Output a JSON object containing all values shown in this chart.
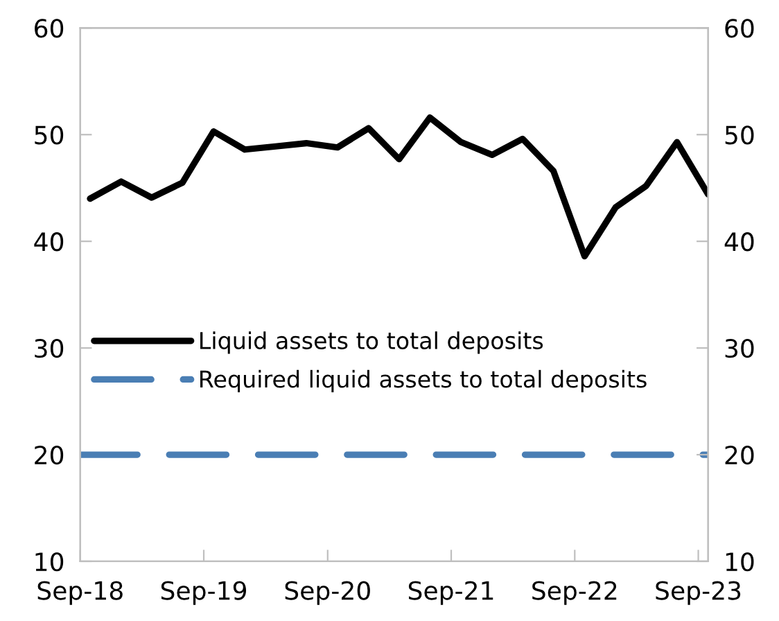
{
  "chart_data": {
    "type": "line",
    "x": [
      "2018-09-30",
      "2018-12-31",
      "2019-03-31",
      "2019-06-30",
      "2019-09-30",
      "2019-12-31",
      "2020-03-31",
      "2020-06-30",
      "2020-09-30",
      "2020-12-31",
      "2021-03-31",
      "2021-06-30",
      "2021-09-30",
      "2021-12-31",
      "2022-03-31",
      "2022-06-30",
      "2022-09-30",
      "2022-12-31",
      "2023-03-31",
      "2023-06-30",
      "2023-09-30"
    ],
    "xlim": [
      "2018-09-01",
      "2023-09-30"
    ],
    "xticks": [
      {
        "value": "2018-09-01",
        "label": "Sep-18"
      },
      {
        "value": "2019-09-01",
        "label": "Sep-19"
      },
      {
        "value": "2020-09-01",
        "label": "Sep-20"
      },
      {
        "value": "2021-09-01",
        "label": "Sep-21"
      },
      {
        "value": "2022-09-01",
        "label": "Sep-22"
      },
      {
        "value": "2023-09-01",
        "label": "Sep-23"
      }
    ],
    "ylim": [
      10,
      60
    ],
    "yticks": [
      10,
      20,
      30,
      40,
      50,
      60
    ],
    "y2lim": [
      10,
      60
    ],
    "y2ticks": [
      10,
      20,
      30,
      40,
      50,
      60
    ],
    "series": [
      {
        "name": "Liquid assets to total deposits",
        "color": "#000000",
        "values": [
          44.0,
          45.6,
          44.1,
          45.5,
          50.3,
          48.6,
          48.9,
          49.2,
          48.8,
          50.6,
          47.7,
          51.6,
          49.3,
          48.1,
          49.6,
          46.6,
          38.6,
          43.2,
          45.2,
          49.3,
          44.4
        ]
      }
    ],
    "ref_lines": [
      {
        "axis": "y",
        "value": 20,
        "label": "Required liquid assets to total deposits",
        "color": "#4a7eb4",
        "line_style": "dashed"
      }
    ],
    "legend": "left",
    "grid": false,
    "marker": "none",
    "line_style": "solid"
  }
}
